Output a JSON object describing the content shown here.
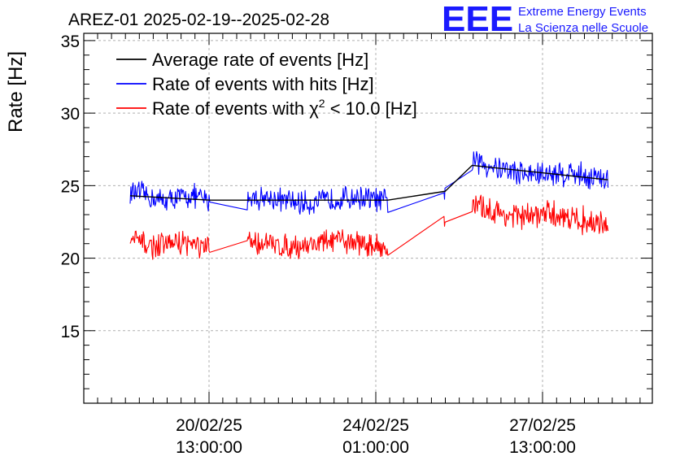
{
  "chart_data": {
    "type": "line",
    "title": "AREZ-01 2025-02-19--2025-02-28",
    "ylabel": "Rate [Hz]",
    "ylim": [
      10,
      35.5
    ],
    "yticks": [
      15,
      20,
      25,
      30,
      35
    ],
    "xticks": [
      {
        "label_date": "20/02/25",
        "label_time": "13:00:00"
      },
      {
        "label_date": "24/02/25",
        "label_time": "01:00:00"
      },
      {
        "label_date": "27/02/25",
        "label_time": "13:00:00"
      }
    ],
    "grid": true,
    "legend_position": "top-left",
    "legend": {
      "avg": "Average rate of events [Hz]",
      "hits": "Rate of events with hits [Hz]",
      "chi_prefix": "Rate of events with ",
      "chi_symbol": "χ",
      "chi_exp": "2",
      "chi_suffix": " < 10.0 [Hz]"
    },
    "series": [
      {
        "name": "Average rate of events [Hz]",
        "color": "#000000",
        "segments": [
          {
            "x": [
              0.0,
              1.7
            ],
            "y": [
              24.3,
              24.0
            ],
            "noise": 0.7
          },
          {
            "x": [
              2.5,
              5.5
            ],
            "y": [
              24.0,
              24.0
            ],
            "noise": 0.7
          },
          {
            "x": [
              6.7,
              6.72
            ],
            "y": [
              24.6,
              24.6
            ],
            "noise": 1.0
          },
          {
            "x": [
              7.3,
              10.2
            ],
            "y": [
              26.4,
              25.4
            ],
            "noise": 0.8
          }
        ]
      },
      {
        "name": "Rate of events with hits [Hz]",
        "color": "#0000ff",
        "segments": [
          {
            "x": [
              0.0,
              1.7
            ],
            "y": [
              24.3,
              24.0
            ],
            "noise": 0.8
          },
          {
            "x": [
              2.5,
              5.5
            ],
            "y": [
              24.0,
              24.0
            ],
            "noise": 0.8
          },
          {
            "x": [
              6.7,
              6.72
            ],
            "y": [
              24.6,
              24.6
            ],
            "noise": 1.2
          },
          {
            "x": [
              7.3,
              10.2
            ],
            "y": [
              26.4,
              25.4
            ],
            "noise": 0.9
          }
        ]
      },
      {
        "name": "Rate of events with χ2 < 10.0 [Hz]",
        "color": "#ff0000",
        "segments": [
          {
            "x": [
              0.0,
              1.7
            ],
            "y": [
              21.1,
              20.8
            ],
            "noise": 0.8
          },
          {
            "x": [
              2.5,
              5.5
            ],
            "y": [
              21.0,
              21.0
            ],
            "noise": 0.8
          },
          {
            "x": [
              6.7,
              6.72
            ],
            "y": [
              21.8,
              21.8
            ],
            "noise": 1.2
          },
          {
            "x": [
              7.3,
              10.2
            ],
            "y": [
              23.4,
              22.4
            ],
            "noise": 0.9
          }
        ]
      }
    ]
  },
  "logo": {
    "mark": "EEE",
    "line1": "Extreme Energy Events",
    "line2": "La Scienza nelle Scuole",
    "color": "#1a1aff"
  }
}
